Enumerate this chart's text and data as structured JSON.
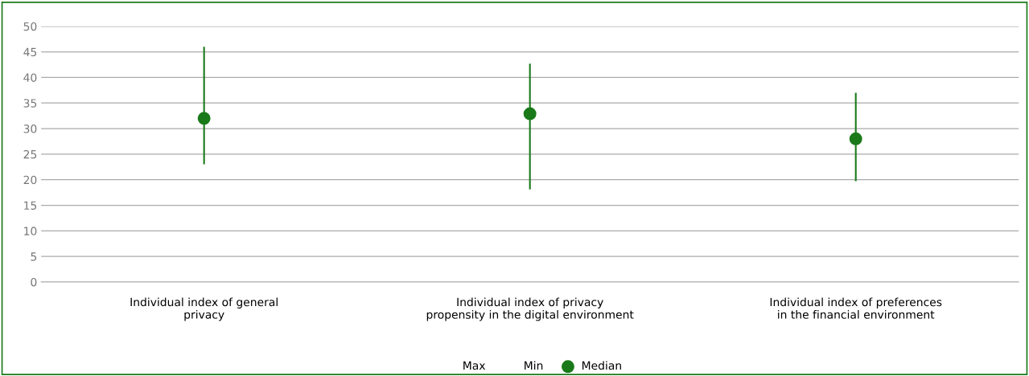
{
  "chart_data": {
    "type": "scatter",
    "categories": [
      "Individual index of general\nprivacy",
      "Individual index of privacy\npropensity in the digital environment",
      "Individual index of preferences\nin the financial environment"
    ],
    "series": [
      {
        "name": "Median",
        "color": "#1a7a1a",
        "marker": "circle",
        "values": [
          32,
          32.9,
          28
        ],
        "errors": [
          [
            23,
            46
          ],
          [
            18.1,
            42.7
          ],
          [
            19.7,
            37
          ]
        ]
      }
    ],
    "annotations": [
      "Max",
      "Min"
    ],
    "ylim": [
      0,
      50
    ],
    "yticks": [
      0,
      5,
      10,
      15,
      20,
      25,
      30,
      35,
      40,
      45,
      50
    ],
    "grid": "y",
    "legend": "bottom"
  }
}
